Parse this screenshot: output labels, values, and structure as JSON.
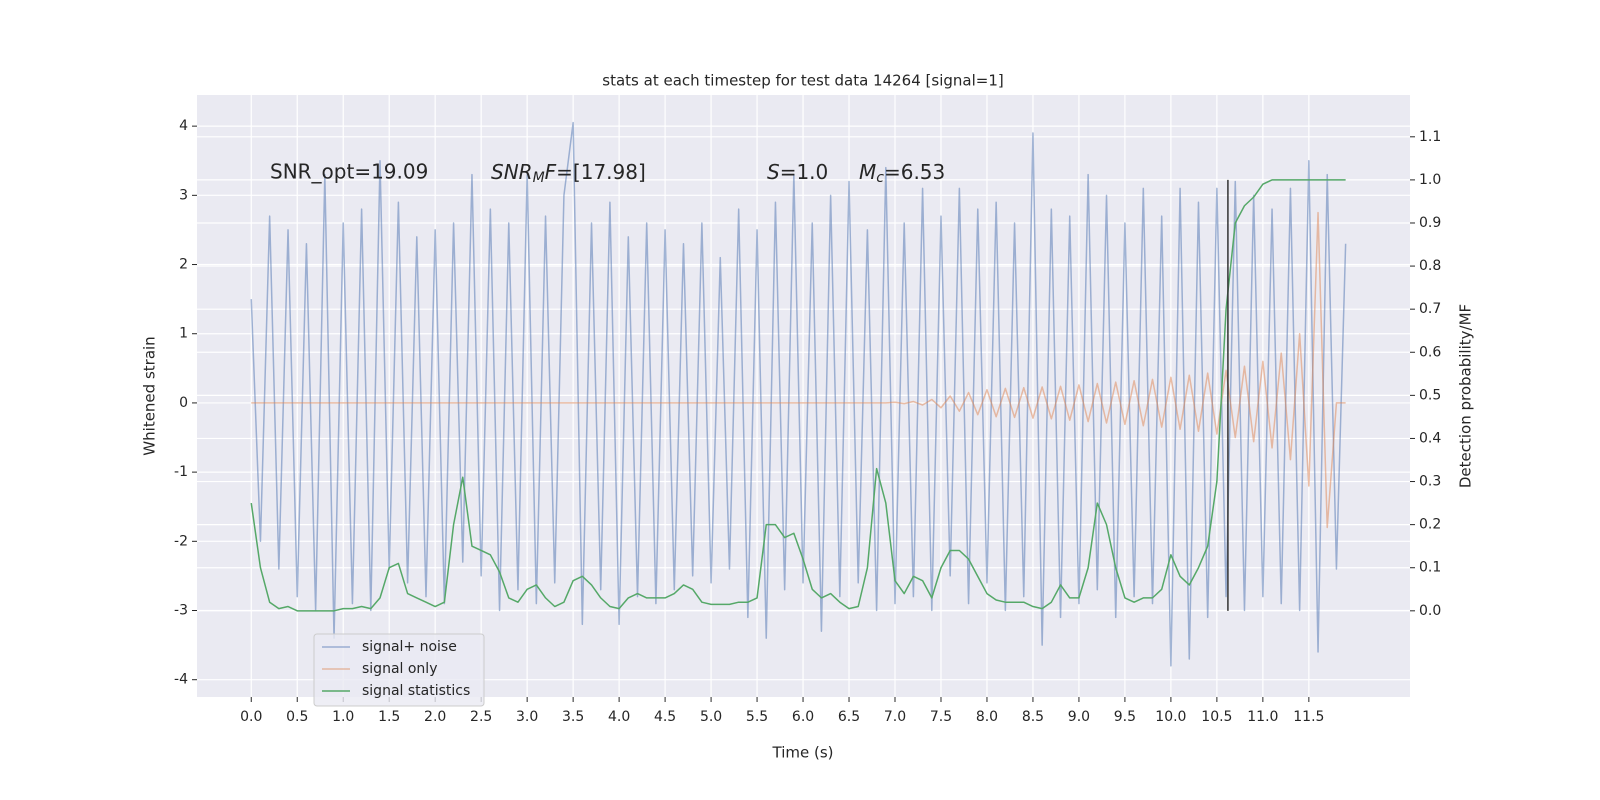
{
  "chart_data": {
    "type": "line",
    "title": "stats at each timestep for test data 14264 [signal=1]",
    "xlabel": "Time (s)",
    "ylabel": "Whitened strain",
    "y2label": "Detection probability/MF",
    "annotations": {
      "snr_opt": "SNR_opt=19.09",
      "snr_mf": [
        "SNR",
        "M",
        "F",
        "=[17.98]"
      ],
      "s": [
        "S",
        "=1.0"
      ],
      "mc": [
        "M",
        "c",
        "=6.53"
      ]
    },
    "x": [
      0.0,
      0.1,
      0.2,
      0.3,
      0.4,
      0.5,
      0.6,
      0.7,
      0.8,
      0.9,
      1.0,
      1.1,
      1.2,
      1.3,
      1.4,
      1.5,
      1.6,
      1.7,
      1.8,
      1.9,
      2.0,
      2.1,
      2.2,
      2.3,
      2.4,
      2.5,
      2.6,
      2.7,
      2.8,
      2.9,
      3.0,
      3.1,
      3.2,
      3.3,
      3.4,
      3.5,
      3.6,
      3.7,
      3.8,
      3.9,
      4.0,
      4.1,
      4.2,
      4.3,
      4.4,
      4.5,
      4.6,
      4.7,
      4.8,
      4.9,
      5.0,
      5.1,
      5.2,
      5.3,
      5.4,
      5.5,
      5.6,
      5.7,
      5.8,
      5.9,
      6.0,
      6.1,
      6.2,
      6.3,
      6.4,
      6.5,
      6.6,
      6.7,
      6.8,
      6.9,
      7.0,
      7.1,
      7.2,
      7.3,
      7.4,
      7.5,
      7.6,
      7.7,
      7.8,
      7.9,
      8.0,
      8.1,
      8.2,
      8.3,
      8.4,
      8.5,
      8.6,
      8.7,
      8.8,
      8.9,
      9.0,
      9.1,
      9.2,
      9.3,
      9.4,
      9.5,
      9.6,
      9.7,
      9.8,
      9.9,
      10.0,
      10.1,
      10.2,
      10.3,
      10.4,
      10.5,
      10.6,
      10.7,
      10.8,
      10.9,
      11.0,
      11.1,
      11.2,
      11.3,
      11.4,
      11.5,
      11.6,
      11.7,
      11.8,
      11.9
    ],
    "series": [
      {
        "name": "signal+ noise",
        "color": "#4c72b0",
        "alpha": 0.5,
        "values": [
          1.5,
          -2.0,
          2.7,
          -2.4,
          2.5,
          -2.8,
          2.3,
          -3.0,
          3.3,
          -3.4,
          2.6,
          -2.9,
          2.8,
          -3.0,
          3.5,
          -2.4,
          2.9,
          -2.6,
          2.4,
          -2.8,
          2.5,
          -2.9,
          2.6,
          -2.3,
          3.3,
          -2.5,
          2.8,
          -3.0,
          2.6,
          -2.7,
          3.3,
          -2.9,
          2.7,
          -2.6,
          3.0,
          4.05,
          -3.2,
          2.6,
          -2.7,
          2.9,
          -3.2,
          2.4,
          -2.8,
          2.6,
          -2.9,
          2.5,
          -2.7,
          2.3,
          -2.5,
          2.6,
          -2.6,
          2.1,
          -2.4,
          2.8,
          -3.1,
          2.5,
          -3.4,
          2.9,
          -2.7,
          3.3,
          -2.6,
          2.6,
          -3.3,
          3.0,
          -2.8,
          3.2,
          -2.6,
          2.5,
          -3.0,
          3.4,
          -2.9,
          2.6,
          -2.8,
          3.1,
          -3.0,
          2.7,
          -2.5,
          3.1,
          -2.9,
          2.8,
          -2.6,
          2.9,
          -3.0,
          2.6,
          -2.8,
          3.9,
          -3.5,
          2.8,
          -3.1,
          2.7,
          -2.9,
          3.3,
          -2.7,
          3.0,
          -3.1,
          2.6,
          -2.8,
          3.1,
          -2.9,
          2.7,
          -3.8,
          3.1,
          -3.7,
          2.9,
          -3.1,
          3.1,
          -2.8,
          3.2,
          -3.0,
          3.0,
          -2.8,
          2.8,
          -2.9,
          3.1,
          -3.0,
          3.5,
          -3.6,
          3.3,
          -2.4,
          2.3
        ]
      },
      {
        "name": "signal only",
        "color": "#dd8452",
        "alpha": 0.5,
        "values": [
          0,
          0,
          0,
          0,
          0,
          0,
          0,
          0,
          0,
          0,
          0,
          0,
          0,
          0,
          0,
          0,
          0,
          0,
          0,
          0,
          0,
          0,
          0,
          0,
          0,
          0,
          0,
          0,
          0,
          0,
          0,
          0,
          0,
          0,
          0,
          0,
          0,
          0,
          0,
          0,
          0,
          0,
          0,
          0,
          0,
          0,
          0,
          0,
          0,
          0,
          0,
          0,
          0,
          0,
          0,
          0,
          0,
          0,
          0,
          0,
          0,
          0,
          0,
          0,
          0,
          0,
          0,
          0,
          0,
          0,
          0.01,
          -0.01,
          0.02,
          -0.03,
          0.05,
          -0.07,
          0.1,
          -0.12,
          0.15,
          -0.17,
          0.19,
          -0.2,
          0.21,
          -0.21,
          0.22,
          -0.22,
          0.23,
          -0.23,
          0.24,
          -0.25,
          0.26,
          -0.27,
          0.28,
          -0.29,
          0.3,
          -0.31,
          0.32,
          -0.33,
          0.34,
          -0.35,
          0.37,
          -0.38,
          0.4,
          -0.41,
          0.43,
          -0.45,
          0.47,
          -0.5,
          0.53,
          -0.56,
          0.6,
          -0.65,
          0.72,
          -0.82,
          1.0,
          -1.2,
          2.75,
          -1.8,
          0,
          0
        ]
      },
      {
        "name": "signal statistics",
        "color": "#55a868",
        "alpha": 1,
        "axis": "y2",
        "values": [
          0.25,
          0.1,
          0.02,
          0.005,
          0.01,
          0.0,
          0.0,
          0.0,
          0.0,
          0.0,
          0.005,
          0.005,
          0.01,
          0.005,
          0.03,
          0.1,
          0.11,
          0.04,
          0.03,
          0.02,
          0.01,
          0.02,
          0.2,
          0.31,
          0.15,
          0.14,
          0.13,
          0.09,
          0.03,
          0.02,
          0.05,
          0.06,
          0.03,
          0.01,
          0.02,
          0.07,
          0.08,
          0.06,
          0.03,
          0.01,
          0.005,
          0.03,
          0.04,
          0.03,
          0.03,
          0.03,
          0.04,
          0.06,
          0.05,
          0.02,
          0.015,
          0.015,
          0.015,
          0.02,
          0.02,
          0.03,
          0.2,
          0.2,
          0.17,
          0.18,
          0.12,
          0.05,
          0.03,
          0.04,
          0.02,
          0.005,
          0.01,
          0.1,
          0.33,
          0.25,
          0.07,
          0.04,
          0.08,
          0.07,
          0.03,
          0.1,
          0.14,
          0.14,
          0.12,
          0.08,
          0.04,
          0.025,
          0.02,
          0.02,
          0.02,
          0.01,
          0.005,
          0.02,
          0.06,
          0.03,
          0.03,
          0.1,
          0.25,
          0.2,
          0.1,
          0.03,
          0.02,
          0.03,
          0.03,
          0.05,
          0.13,
          0.08,
          0.06,
          0.1,
          0.15,
          0.3,
          0.7,
          0.9,
          0.94,
          0.96,
          0.99,
          1.0,
          1.0,
          1.0,
          1.0,
          1.0,
          1.0,
          1.0,
          1.0,
          1.0
        ]
      }
    ],
    "vline": {
      "x": 10.62,
      "ymin": 0,
      "ymax": 1,
      "color": "#333333"
    },
    "xlim": [
      -0.59,
      12.6
    ],
    "ylim": [
      -4.25,
      4.45
    ],
    "y2lim": [
      -0.2,
      1.197
    ],
    "xticks": [
      {
        "value": 0,
        "label": "0.0"
      },
      {
        "value": 0.5,
        "label": "0.5"
      },
      {
        "value": 1,
        "label": "1.0"
      },
      {
        "value": 1.5,
        "label": "1.5"
      },
      {
        "value": 2,
        "label": "2.0"
      },
      {
        "value": 2.5,
        "label": "2.5"
      },
      {
        "value": 3,
        "label": "3.0"
      },
      {
        "value": 3.5,
        "label": "3.5"
      },
      {
        "value": 4,
        "label": "4.0"
      },
      {
        "value": 4.5,
        "label": "4.5"
      },
      {
        "value": 5,
        "label": "5.0"
      },
      {
        "value": 5.5,
        "label": "5.5"
      },
      {
        "value": 6,
        "label": "6.0"
      },
      {
        "value": 6.5,
        "label": "6.5"
      },
      {
        "value": 7,
        "label": "7.0"
      },
      {
        "value": 7.5,
        "label": "7.5"
      },
      {
        "value": 8,
        "label": "8.0"
      },
      {
        "value": 8.5,
        "label": "8.5"
      },
      {
        "value": 9,
        "label": "9.0"
      },
      {
        "value": 9.5,
        "label": "9.5"
      },
      {
        "value": 10,
        "label": "10.0"
      },
      {
        "value": 10.5,
        "label": "10.5"
      },
      {
        "value": 11,
        "label": "11.0"
      },
      {
        "value": 11.5,
        "label": "11.5"
      }
    ],
    "yticks": [
      -4,
      -3,
      -2,
      -1,
      0,
      1,
      2,
      3,
      4
    ],
    "y2ticks": [
      {
        "value": 0,
        "label": "0.0"
      },
      {
        "value": 0.1,
        "label": "0.1"
      },
      {
        "value": 0.2,
        "label": "0.2"
      },
      {
        "value": 0.3,
        "label": "0.3"
      },
      {
        "value": 0.4,
        "label": "0.4"
      },
      {
        "value": 0.5,
        "label": "0.5"
      },
      {
        "value": 0.6,
        "label": "0.6"
      },
      {
        "value": 0.7,
        "label": "0.7"
      },
      {
        "value": 0.8,
        "label": "0.8"
      },
      {
        "value": 0.9,
        "label": "0.9"
      },
      {
        "value": 1,
        "label": "1.0"
      },
      {
        "value": 1.1,
        "label": "1.1"
      }
    ],
    "grid": true,
    "legend": "lower left"
  }
}
